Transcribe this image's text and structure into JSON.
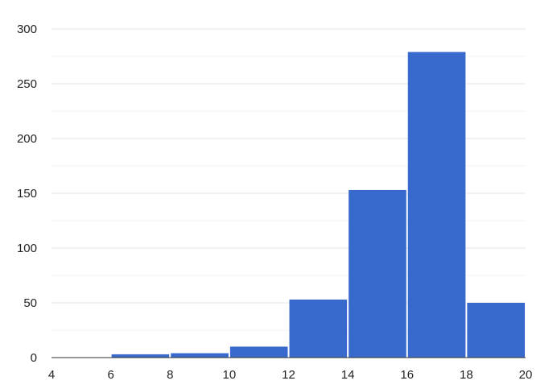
{
  "chart_data": {
    "type": "bar",
    "subtype": "histogram",
    "bins": [
      {
        "x0": 4,
        "x1": 6,
        "value": 0
      },
      {
        "x0": 6,
        "x1": 8,
        "value": 3
      },
      {
        "x0": 8,
        "x1": 10,
        "value": 4
      },
      {
        "x0": 10,
        "x1": 12,
        "value": 10
      },
      {
        "x0": 12,
        "x1": 14,
        "value": 53
      },
      {
        "x0": 14,
        "x1": 16,
        "value": 153
      },
      {
        "x0": 16,
        "x1": 18,
        "value": 279
      },
      {
        "x0": 18,
        "x1": 20,
        "value": 50
      }
    ],
    "xlim": [
      4,
      20
    ],
    "ylim": [
      0,
      300
    ],
    "xticks": [
      "4",
      "6",
      "8",
      "10",
      "12",
      "14",
      "16",
      "18",
      "20"
    ],
    "yticks": [
      "0",
      "50",
      "100",
      "150",
      "200",
      "250",
      "300"
    ],
    "title": "",
    "xlabel": "",
    "ylabel": "",
    "grid": true,
    "legend": "none",
    "bar_color": "#3869cc"
  }
}
